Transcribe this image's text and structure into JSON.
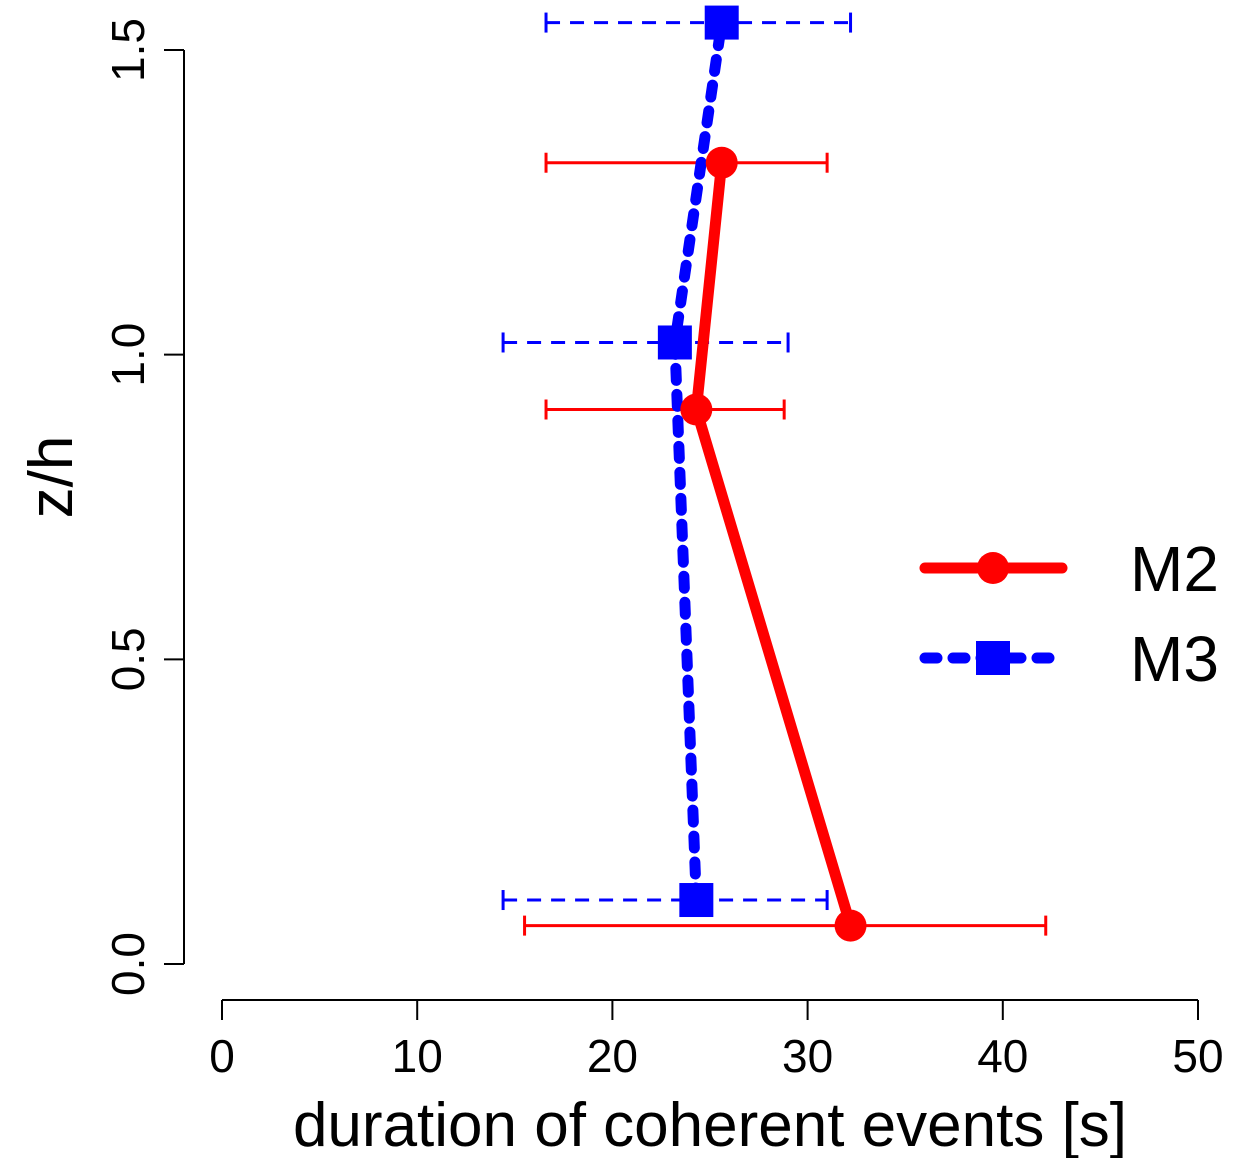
{
  "chart_data": {
    "type": "line",
    "title": "",
    "xlabel": "duration of coherent events [s]",
    "ylabel": "z/h",
    "xlim": [
      0,
      50
    ],
    "ylim": [
      0,
      1.5
    ],
    "xticks": [
      0,
      10,
      20,
      30,
      40,
      50
    ],
    "yticks": [
      "0.0",
      "0.5",
      "1.0",
      "1.5"
    ],
    "grid": false,
    "legend_position": "right",
    "series": [
      {
        "name": "M2",
        "color": "#ff0000",
        "line_style": "solid",
        "marker": "circle",
        "points": [
          {
            "x": 32.2,
            "y": 0.063,
            "xerr_low": 15.5,
            "xerr_high": 42.2
          },
          {
            "x": 24.3,
            "y": 0.91,
            "xerr_low": 16.6,
            "xerr_high": 28.8
          },
          {
            "x": 25.6,
            "y": 1.315,
            "xerr_low": 16.6,
            "xerr_high": 31.0
          }
        ]
      },
      {
        "name": "M3",
        "color": "#0000ff",
        "line_style": "dashed",
        "marker": "square",
        "points": [
          {
            "x": 24.3,
            "y": 0.105,
            "xerr_low": 14.4,
            "xerr_high": 31.0
          },
          {
            "x": 23.2,
            "y": 1.02,
            "xerr_low": 14.4,
            "xerr_high": 29.0
          },
          {
            "x": 25.6,
            "y": 1.545,
            "xerr_low": 16.6,
            "xerr_high": 32.2
          }
        ]
      }
    ]
  }
}
